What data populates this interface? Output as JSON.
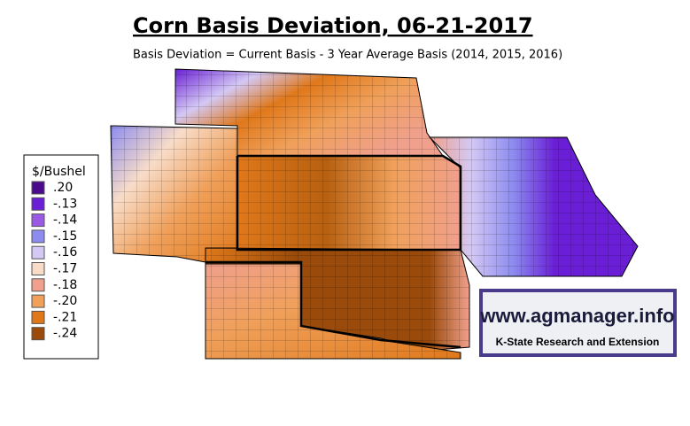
{
  "title": "Corn Basis Deviation, 06-21-2017",
  "subtitle": "Basis Deviation = Current Basis - 3 Year Average Basis (2014, 2015, 2016)",
  "legend": {
    "title": "$/Bushel",
    "items": [
      {
        "label": ".20",
        "color": "#4b0a8c"
      },
      {
        "label": "-.13",
        "color": "#6a1fd6"
      },
      {
        "label": "-.14",
        "color": "#9a5ae6"
      },
      {
        "label": "-.15",
        "color": "#8c8cf0"
      },
      {
        "label": "-.16",
        "color": "#d4c8f4"
      },
      {
        "label": "-.17",
        "color": "#f8dcc8"
      },
      {
        "label": "-.18",
        "color": "#f0a08c"
      },
      {
        "label": "-.20",
        "color": "#f0a05a"
      },
      {
        "label": "-.21",
        "color": "#e0781a"
      },
      {
        "label": "-.24",
        "color": "#9a4a0a"
      }
    ]
  },
  "logo": {
    "url": "www.agmanager.info",
    "org": "K-State Research and Extension"
  }
}
